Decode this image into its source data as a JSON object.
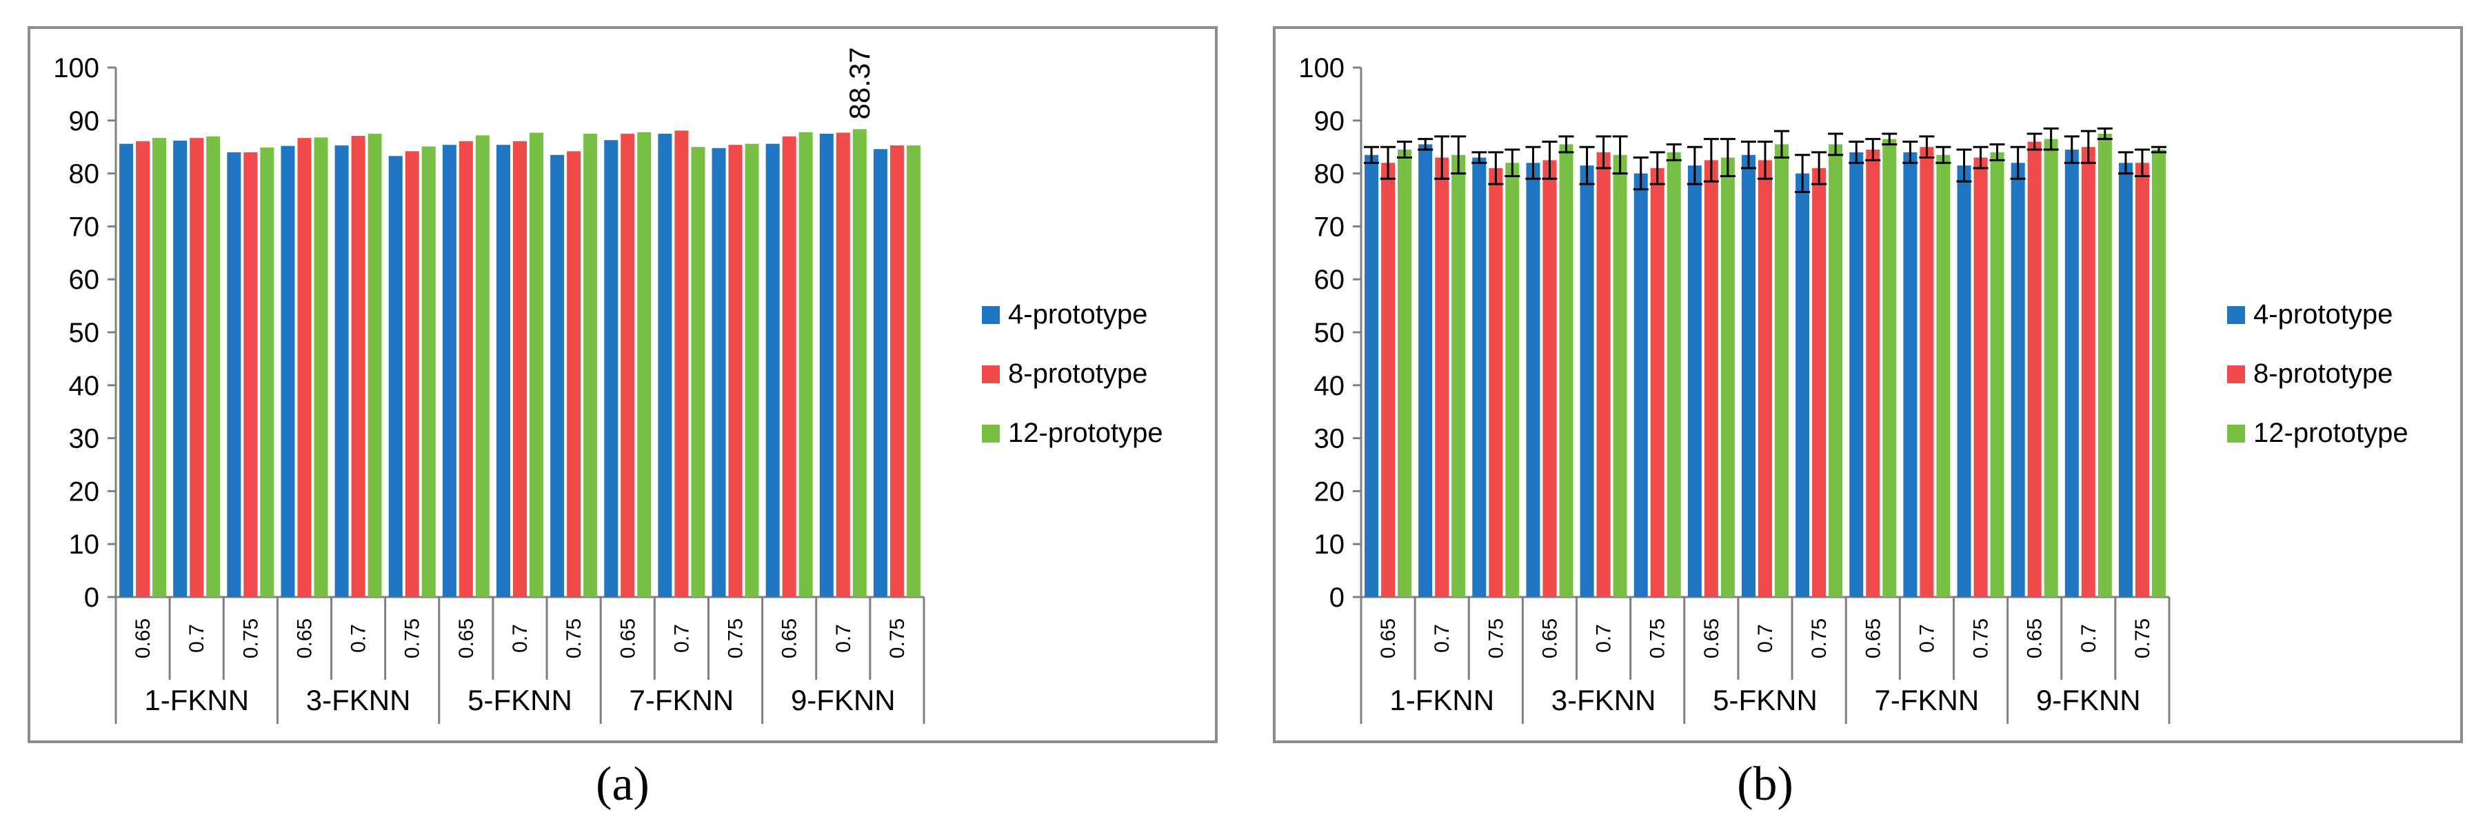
{
  "colors": {
    "4-prototype": "#1f77c4",
    "8-prototype": "#f04a4a",
    "12-prototype": "#77c043",
    "axis": "#808080",
    "errorbar": "#000000"
  },
  "chart_data": [
    {
      "type": "bar",
      "panel_label": "(a)",
      "ylim": [
        0,
        100
      ],
      "yticks": [
        "0",
        "10",
        "20",
        "30",
        "40",
        "50",
        "60",
        "70",
        "80",
        "90",
        "100"
      ],
      "groups": [
        "1-FKNN",
        "3-FKNN",
        "5-FKNN",
        "7-FKNN",
        "9-FKNN"
      ],
      "categories": [
        "0.65",
        "0.7",
        "0.75",
        "0.65",
        "0.7",
        "0.75",
        "0.65",
        "0.7",
        "0.75",
        "0.65",
        "0.7",
        "0.75",
        "0.65",
        "0.7",
        "0.75"
      ],
      "series": [
        {
          "name": "4-prototype",
          "values": [
            85.6,
            86.2,
            84.0,
            85.2,
            85.3,
            83.3,
            85.4,
            85.4,
            83.5,
            86.3,
            87.5,
            84.8,
            85.6,
            87.5,
            84.6
          ]
        },
        {
          "name": "8-prototype",
          "values": [
            86.1,
            86.7,
            84.0,
            86.7,
            87.1,
            84.2,
            86.1,
            86.1,
            84.2,
            87.5,
            88.1,
            85.4,
            87.0,
            87.7,
            85.3
          ]
        },
        {
          "name": "12-prototype",
          "values": [
            86.7,
            87.0,
            84.9,
            86.8,
            87.5,
            85.1,
            87.2,
            87.7,
            87.5,
            87.8,
            85.0,
            85.6,
            87.8,
            88.37,
            85.3
          ]
        }
      ],
      "annotations": [
        {
          "text": "88.37",
          "series": "12-prototype",
          "index": 13
        }
      ]
    },
    {
      "type": "bar",
      "panel_label": "(b)",
      "ylim": [
        0,
        100
      ],
      "yticks": [
        "0",
        "10",
        "20",
        "30",
        "40",
        "50",
        "60",
        "70",
        "80",
        "90",
        "100"
      ],
      "groups": [
        "1-FKNN",
        "3-FKNN",
        "5-FKNN",
        "7-FKNN",
        "9-FKNN"
      ],
      "categories": [
        "0.65",
        "0.7",
        "0.75",
        "0.65",
        "0.7",
        "0.75",
        "0.65",
        "0.7",
        "0.75",
        "0.65",
        "0.7",
        "0.75",
        "0.65",
        "0.7",
        "0.75"
      ],
      "series": [
        {
          "name": "4-prototype",
          "values": [
            83.5,
            85.5,
            83.0,
            82.0,
            81.5,
            80.0,
            81.5,
            83.5,
            80.0,
            84.0,
            84.0,
            81.5,
            82.0,
            84.5,
            82.0
          ],
          "errors": [
            1.5,
            1.0,
            1.0,
            3.0,
            3.5,
            3.0,
            3.5,
            2.5,
            3.5,
            2.0,
            2.0,
            3.0,
            3.0,
            2.5,
            2.0
          ]
        },
        {
          "name": "8-prototype",
          "values": [
            82.0,
            83.0,
            81.0,
            82.5,
            84.0,
            81.0,
            82.5,
            82.5,
            81.0,
            84.5,
            85.0,
            83.0,
            86.0,
            85.0,
            82.0
          ],
          "errors": [
            3.0,
            4.0,
            3.0,
            3.5,
            3.0,
            3.0,
            4.0,
            3.5,
            3.0,
            2.0,
            2.0,
            2.0,
            1.5,
            3.0,
            2.5
          ]
        },
        {
          "name": "12-prototype",
          "values": [
            84.5,
            83.5,
            82.0,
            85.5,
            83.5,
            84.0,
            83.0,
            85.5,
            85.5,
            86.5,
            83.5,
            84.0,
            86.5,
            87.5,
            84.5
          ],
          "errors": [
            1.5,
            3.5,
            2.5,
            1.5,
            3.5,
            1.5,
            3.5,
            2.5,
            2.0,
            1.0,
            1.5,
            1.5,
            2.0,
            1.0,
            0.5
          ]
        }
      ]
    }
  ]
}
